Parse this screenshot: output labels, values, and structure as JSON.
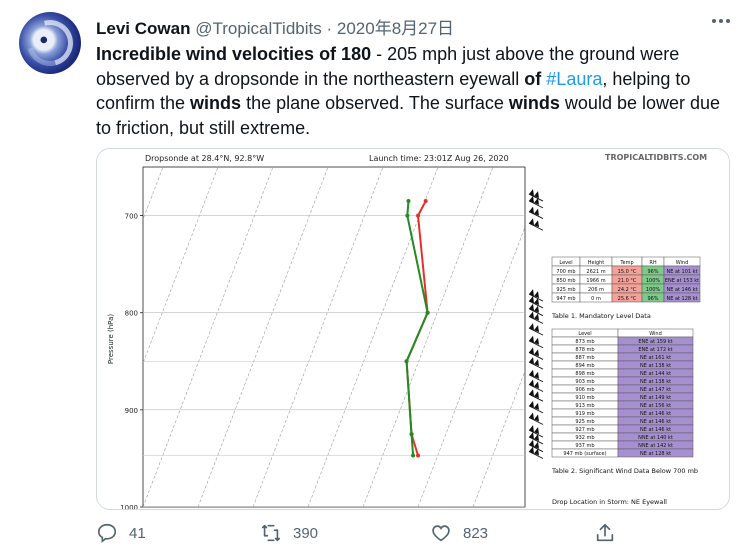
{
  "tweet": {
    "author_name": "Levi Cowan",
    "author_handle": "@TropicalTidbits",
    "separator": "·",
    "date": "2020年8月27日",
    "text_parts": {
      "p1": "Incredible wind velocities of 180",
      "p2": " - 205 mph just above the ground were observed by a dropsonde in the northeastern eyewall ",
      "p3": "of",
      "p4": " ",
      "hashtag": "#Laura",
      "p5": ", helping to confirm the ",
      "p6": "winds",
      "p7": " the plane observed. The surface ",
      "p8": "winds",
      "p9": " would be lower due to friction, but still extreme."
    }
  },
  "more_icon": "more-dots-icon",
  "actions": {
    "reply_count": "41",
    "retweet_count": "390",
    "like_count": "823",
    "icons": [
      "reply-icon",
      "retweet-icon",
      "like-icon",
      "share-icon"
    ]
  },
  "chart_data": {
    "type": "line",
    "title_left": "Dropsonde at 28.4°N, 92.8°W",
    "title_right": "Launch time: 23:01Z Aug 26, 2020",
    "brand": "TROPICALTIDBITS.COM",
    "ylabel": "Pressure (hPa)",
    "yticks": [
      "700",
      "800",
      "900",
      "1000"
    ],
    "ylim": [
      650,
      1000
    ],
    "series": [
      {
        "color": "#228b22",
        "points": [
          [
            685,
            0.695
          ],
          [
            700,
            0.692
          ],
          [
            800,
            0.745
          ],
          [
            850,
            0.69
          ],
          [
            925,
            0.703
          ],
          [
            947,
            0.707
          ]
        ]
      },
      {
        "color": "#e8302a",
        "points": [
          [
            685,
            0.74
          ],
          [
            700,
            0.72
          ],
          [
            800,
            0.745
          ],
          [
            850,
            0.69
          ],
          [
            925,
            0.703
          ],
          [
            947,
            0.72
          ]
        ]
      }
    ],
    "wind_barbs_pressures": [
      682,
      689,
      700,
      712,
      785,
      792,
      800,
      808,
      820,
      833,
      845,
      855,
      868,
      878,
      888,
      900,
      912,
      925,
      932,
      940,
      947
    ],
    "mandatory_table": {
      "headers": [
        "Level",
        "Height",
        "Temp",
        "RH",
        "Wind"
      ],
      "rows": [
        [
          "700 mb",
          "2621 m",
          "15.0 °C",
          "96%",
          "NE at 101 kt"
        ],
        [
          "850 mb",
          "1966 m",
          "21.0 °C",
          "100%",
          "ENE at 153 kt"
        ],
        [
          "925 mb",
          "206 m",
          "24.2 °C",
          "100%",
          "NE at 146 kt"
        ],
        [
          "947 mb",
          "0 m",
          "25.6 °C",
          "96%",
          "NE at 128 kt"
        ]
      ],
      "caption": "Table 1. Mandatory Level Data"
    },
    "wind_table": {
      "headers": [
        "Level",
        "Wind"
      ],
      "rows": [
        [
          "873 mb",
          "ENE at 159 kt"
        ],
        [
          "878 mb",
          "ENE at 172 kt"
        ],
        [
          "887 mb",
          "NE at 161 kt"
        ],
        [
          "894 mb",
          "NE at 138 kt"
        ],
        [
          "898 mb",
          "NE at 144 kt"
        ],
        [
          "903 mb",
          "NE at 138 kt"
        ],
        [
          "906 mb",
          "NE at 147 kt"
        ],
        [
          "910 mb",
          "NE at 149 kt"
        ],
        [
          "913 mb",
          "NE at 156 kt"
        ],
        [
          "919 mb",
          "NE at 146 kt"
        ],
        [
          "925 mb",
          "NE at 146 kt"
        ],
        [
          "927 mb",
          "NE at 146 kt"
        ],
        [
          "932 mb",
          "NNE at 140 kt"
        ],
        [
          "937 mb",
          "NNE at 142 kt"
        ],
        [
          "947 mb (surface)",
          "NE at 128 kt"
        ]
      ],
      "caption": "Table 2. Significant Wind Data Below 700 mb"
    },
    "drop_location": "Drop Location in Storm: NE Eyewall",
    "colors": {
      "temp_warm": "#f4a19a",
      "rh_green": "#7fc98a",
      "wind_purple": "#a690d0"
    }
  }
}
